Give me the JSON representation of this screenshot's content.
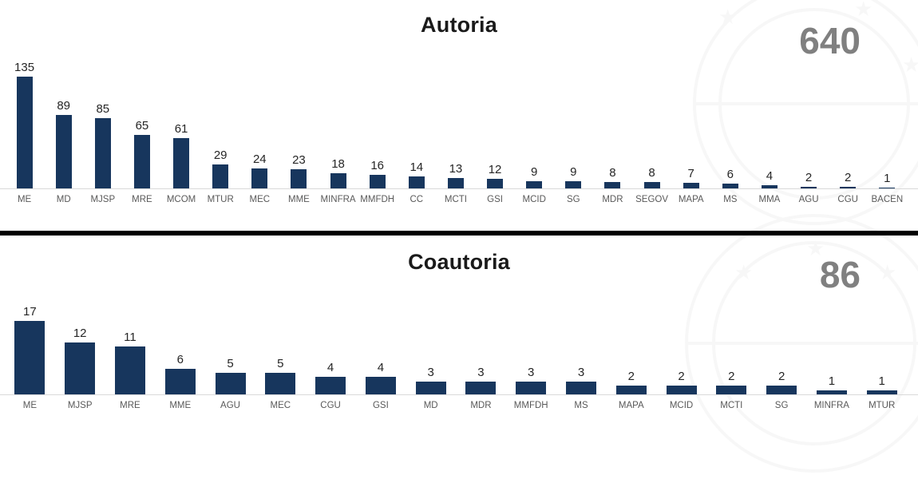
{
  "colors": {
    "bar": "#17365D",
    "title": "#1A1A1A",
    "total": "#808080",
    "value_label": "#262626",
    "category_label": "#595959",
    "baseline": "#D9D9D9",
    "divider": "#000000"
  },
  "chart_data": [
    {
      "type": "bar",
      "title": "Autoria",
      "total": "640",
      "categories": [
        "ME",
        "MD",
        "MJSP",
        "MRE",
        "MCOM",
        "MTUR",
        "MEC",
        "MME",
        "MINFRA",
        "MMFDH",
        "CC",
        "MCTI",
        "GSI",
        "MCID",
        "SG",
        "MDR",
        "SEGOV",
        "MAPA",
        "MS",
        "MMA",
        "AGU",
        "CGU",
        "BACEN"
      ],
      "values": [
        135,
        89,
        85,
        65,
        61,
        29,
        24,
        23,
        18,
        16,
        14,
        13,
        12,
        9,
        9,
        8,
        8,
        7,
        6,
        4,
        2,
        2,
        1
      ],
      "xlabel": "",
      "ylabel": "",
      "ylim": [
        0,
        135
      ],
      "grid": false,
      "value_labels": true,
      "legend": "none"
    },
    {
      "type": "bar",
      "title": "Coautoria",
      "total": "86",
      "categories": [
        "ME",
        "MJSP",
        "MRE",
        "MME",
        "AGU",
        "MEC",
        "CGU",
        "GSI",
        "MD",
        "MDR",
        "MMFDH",
        "MS",
        "MAPA",
        "MCID",
        "MCTI",
        "SG",
        "MINFRA",
        "MTUR"
      ],
      "values": [
        17,
        12,
        11,
        6,
        5,
        5,
        4,
        4,
        3,
        3,
        3,
        3,
        2,
        2,
        2,
        2,
        1,
        1
      ],
      "xlabel": "",
      "ylabel": "",
      "ylim": [
        0,
        17
      ],
      "grid": false,
      "value_labels": true,
      "legend": "none"
    }
  ]
}
